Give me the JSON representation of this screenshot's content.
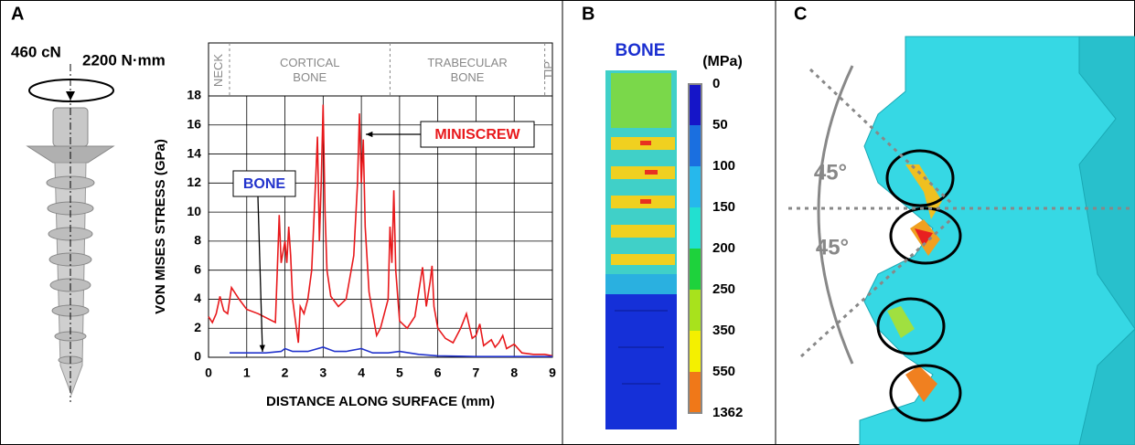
{
  "panel_labels": [
    "A",
    "B",
    "C"
  ],
  "panel_a": {
    "force": "460 cN",
    "torque": "2200 N·mm"
  },
  "chart_data": {
    "type": "line",
    "x_label": "DISTANCE ALONG SURFACE (mm)",
    "y_label": "VON MISES STRESS (GPa)",
    "xlim": [
      0,
      9
    ],
    "xticks": [
      0,
      1,
      2,
      3,
      4,
      5,
      6,
      7,
      8,
      9
    ],
    "ylim": [
      0,
      18
    ],
    "yticks": [
      0,
      2,
      4,
      6,
      8,
      10,
      12,
      14,
      16,
      18
    ],
    "grid": true,
    "regions": [
      {
        "label": "NECK",
        "start": 0,
        "end": 0.55
      },
      {
        "label": "CORTICAL BONE",
        "start": 0.55,
        "end": 4.75
      },
      {
        "label": "TRABECULAR BONE",
        "start": 4.75,
        "end": 8.8
      },
      {
        "label": "TIP",
        "start": 8.8,
        "end": 9
      }
    ],
    "annotations": [
      "MINISCREW",
      "BONE"
    ],
    "series": [
      {
        "name": "MINISCREW",
        "color": "#e8191c",
        "x": [
          0,
          0.1,
          0.2,
          0.3,
          0.4,
          0.5,
          0.6,
          0.8,
          1.0,
          1.3,
          1.6,
          1.75,
          1.8,
          1.85,
          1.9,
          2.0,
          2.05,
          2.1,
          2.15,
          2.2,
          2.3,
          2.35,
          2.4,
          2.5,
          2.6,
          2.7,
          2.8,
          2.85,
          2.9,
          2.95,
          3.0,
          3.05,
          3.1,
          3.2,
          3.4,
          3.6,
          3.8,
          3.9,
          3.95,
          4.0,
          4.05,
          4.1,
          4.2,
          4.3,
          4.4,
          4.5,
          4.6,
          4.7,
          4.75,
          4.8,
          4.85,
          4.9,
          5.0,
          5.2,
          5.4,
          5.5,
          5.6,
          5.7,
          5.8,
          5.85,
          5.9,
          6.0,
          6.2,
          6.4,
          6.6,
          6.75,
          6.9,
          7.0,
          7.1,
          7.2,
          7.4,
          7.5,
          7.6,
          7.7,
          7.8,
          8.0,
          8.2,
          8.5,
          8.8,
          9.0
        ],
        "values": [
          2.8,
          2.4,
          3.0,
          4.2,
          3.2,
          3.0,
          4.8,
          4.0,
          3.3,
          3.0,
          2.6,
          2.4,
          6.0,
          9.8,
          6.5,
          8.0,
          6.5,
          9.0,
          7.0,
          4.0,
          2.0,
          1.0,
          3.5,
          3.0,
          4.0,
          6.0,
          12.0,
          15.2,
          8.0,
          12.0,
          17.4,
          10.0,
          6.0,
          4.2,
          3.5,
          4.0,
          7.0,
          12.0,
          16.8,
          12.0,
          15.0,
          9.0,
          4.5,
          3.0,
          1.5,
          2.0,
          3.0,
          4.0,
          9.0,
          6.5,
          11.5,
          6.0,
          2.5,
          2.0,
          2.8,
          4.5,
          6.2,
          3.5,
          5.2,
          6.3,
          3.5,
          2.0,
          1.3,
          1.0,
          2.0,
          3.0,
          1.3,
          1.5,
          2.3,
          0.8,
          1.2,
          0.7,
          1.0,
          1.5,
          0.6,
          0.9,
          0.3,
          0.2,
          0.2,
          0.1
        ]
      },
      {
        "name": "BONE",
        "color": "#2233cc",
        "x": [
          0.55,
          1.0,
          1.5,
          1.9,
          2.0,
          2.2,
          2.6,
          3.0,
          3.3,
          3.6,
          4.0,
          4.3,
          4.7,
          5.0,
          5.5,
          6.0,
          7.0,
          8.0,
          9.0
        ],
        "values": [
          0.3,
          0.3,
          0.3,
          0.4,
          0.6,
          0.4,
          0.4,
          0.7,
          0.4,
          0.4,
          0.6,
          0.3,
          0.3,
          0.4,
          0.2,
          0.1,
          0.05,
          0.05,
          0.05
        ]
      }
    ]
  },
  "panel_b": {
    "title": "BONE",
    "unit": "(MPa)",
    "colorbar_ticks": [
      0,
      50,
      100,
      150,
      200,
      250,
      350,
      550,
      1362
    ],
    "colorbar_colors": [
      "#1515c8",
      "#1a6fe0",
      "#26b8ec",
      "#22e0d0",
      "#1ed23c",
      "#a8e21c",
      "#f4f000",
      "#f07818"
    ]
  },
  "panel_c": {
    "angles": [
      "45°",
      "45°"
    ]
  }
}
